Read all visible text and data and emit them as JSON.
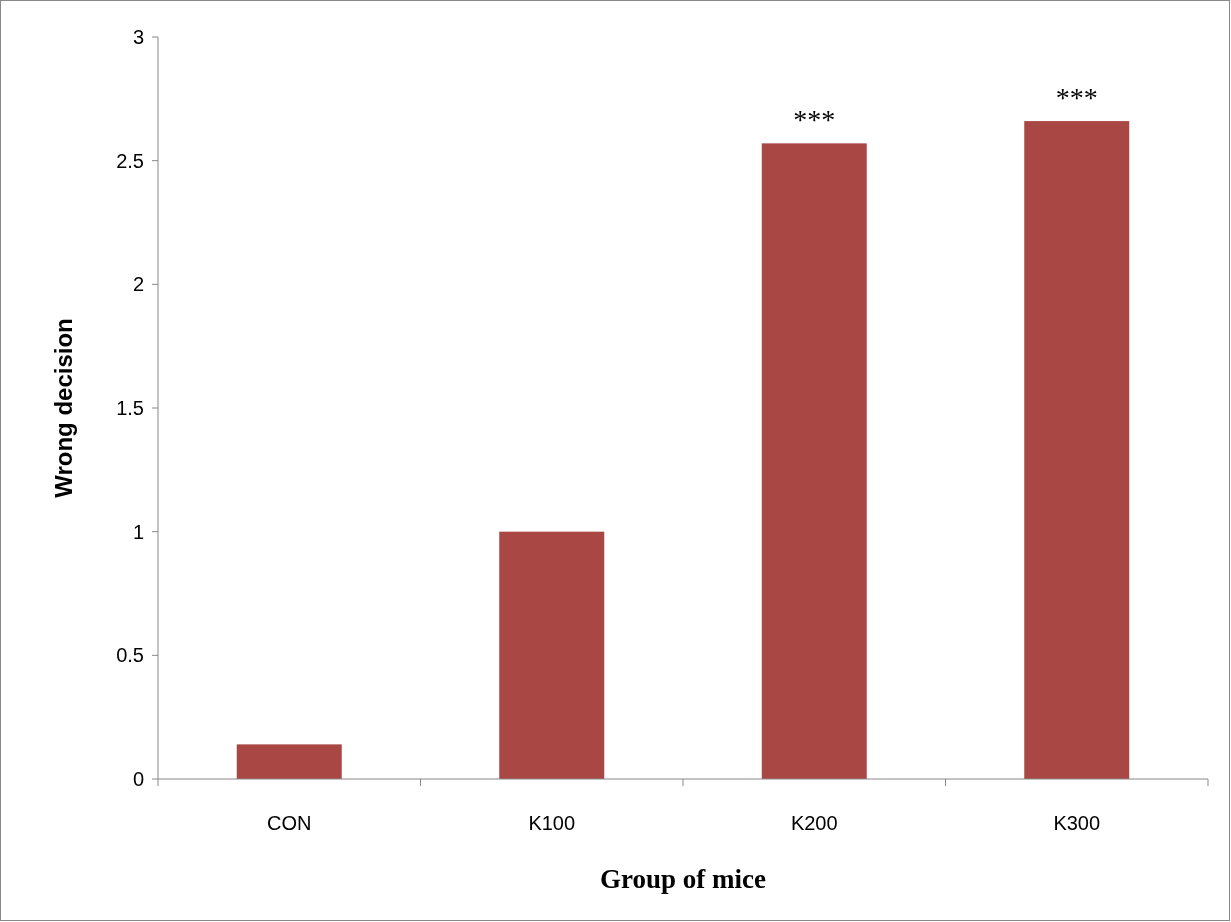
{
  "chart_data": {
    "type": "bar",
    "xlabel": "Group of mice",
    "ylabel": "Wrong decision",
    "categories": [
      "CON",
      "K100",
      "K200",
      "K300"
    ],
    "values": [
      0.14,
      1.0,
      2.57,
      2.66
    ],
    "color": "#a94744",
    "ylim": [
      0,
      3
    ],
    "yticks": [
      0,
      0.5,
      1,
      1.5,
      2,
      2.5,
      3
    ],
    "grid": false,
    "annotations": [
      {
        "text": "***",
        "x": "K200",
        "y": 2.57
      },
      {
        "text": "***",
        "x": "K300",
        "y": 2.66
      }
    ]
  }
}
